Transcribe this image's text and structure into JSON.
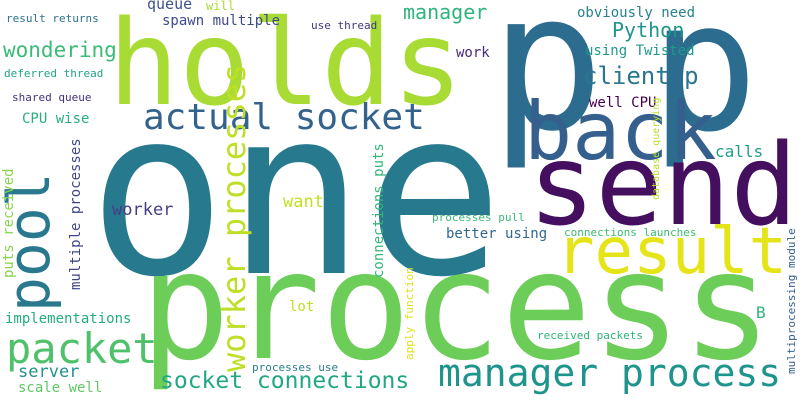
{
  "words": [
    {
      "text": "one",
      "color": "#277a8e"
    },
    {
      "text": "process",
      "color": "#6dcd59"
    },
    {
      "text": "p",
      "color": "#2c6c8e"
    },
    {
      "text": "holds",
      "color": "#a8db34"
    },
    {
      "text": "send",
      "color": "#440f5f"
    },
    {
      "text": "back",
      "color": "#355f8d"
    },
    {
      "text": "result",
      "color": "#e5e419"
    },
    {
      "text": "manager process",
      "color": "#1f948c"
    },
    {
      "text": "pool",
      "color": "#2a788e"
    },
    {
      "text": "packet",
      "color": "#4fc16b"
    },
    {
      "text": "actual socket",
      "color": "#33638d"
    },
    {
      "text": "worker processes",
      "color": "#bddf26"
    },
    {
      "text": "socket connections",
      "color": "#22a785"
    },
    {
      "text": "client p",
      "color": "#2a768e"
    },
    {
      "text": "Python",
      "color": "#1f958b"
    },
    {
      "text": "manager",
      "color": "#2fb47c"
    },
    {
      "text": "wondering",
      "color": "#3bbb75"
    },
    {
      "text": "worker",
      "color": "#433e85"
    },
    {
      "text": "server",
      "color": "#21918c"
    },
    {
      "text": "want",
      "color": "#c5e021"
    },
    {
      "text": "calls",
      "color": "#1f9e89"
    },
    {
      "text": "queue",
      "color": "#3b528b"
    },
    {
      "text": "spawn multiple",
      "color": "#3e4a89"
    },
    {
      "text": "obviously need",
      "color": "#26828e"
    },
    {
      "text": "using Twisted",
      "color": "#1f9a8a"
    },
    {
      "text": "work",
      "color": "#482878"
    },
    {
      "text": "well CPU",
      "color": "#440154"
    },
    {
      "text": "better using",
      "color": "#31688e"
    },
    {
      "text": "CPU wise",
      "color": "#29af7f"
    },
    {
      "text": "multiple processes",
      "color": "#404688"
    },
    {
      "text": "puts received",
      "color": "#86d549"
    },
    {
      "text": "connections puts",
      "color": "#35b779"
    },
    {
      "text": "database querying",
      "color": "#bade28"
    },
    {
      "text": "implementations",
      "color": "#25ac82"
    },
    {
      "text": "lot",
      "color": "#bddf26"
    },
    {
      "text": "scale well",
      "color": "#5ec962"
    },
    {
      "text": "processes use",
      "color": "#287d8e"
    },
    {
      "text": "received packets",
      "color": "#2db27d"
    },
    {
      "text": "B",
      "color": "#2eb37c"
    },
    {
      "text": "multiprocessing module",
      "color": "#355f8d"
    },
    {
      "text": "apply function",
      "color": "#dde318"
    },
    {
      "text": "processes pull",
      "color": "#3aba76"
    },
    {
      "text": "connections launches",
      "color": "#3dbc74"
    },
    {
      "text": "result returns",
      "color": "#2d718e"
    },
    {
      "text": "deferred thread",
      "color": "#20a486"
    },
    {
      "text": "shared queue",
      "color": "#46327e"
    },
    {
      "text": "use thread",
      "color": "#453781"
    },
    {
      "text": "will",
      "color": "#a5db36"
    }
  ]
}
